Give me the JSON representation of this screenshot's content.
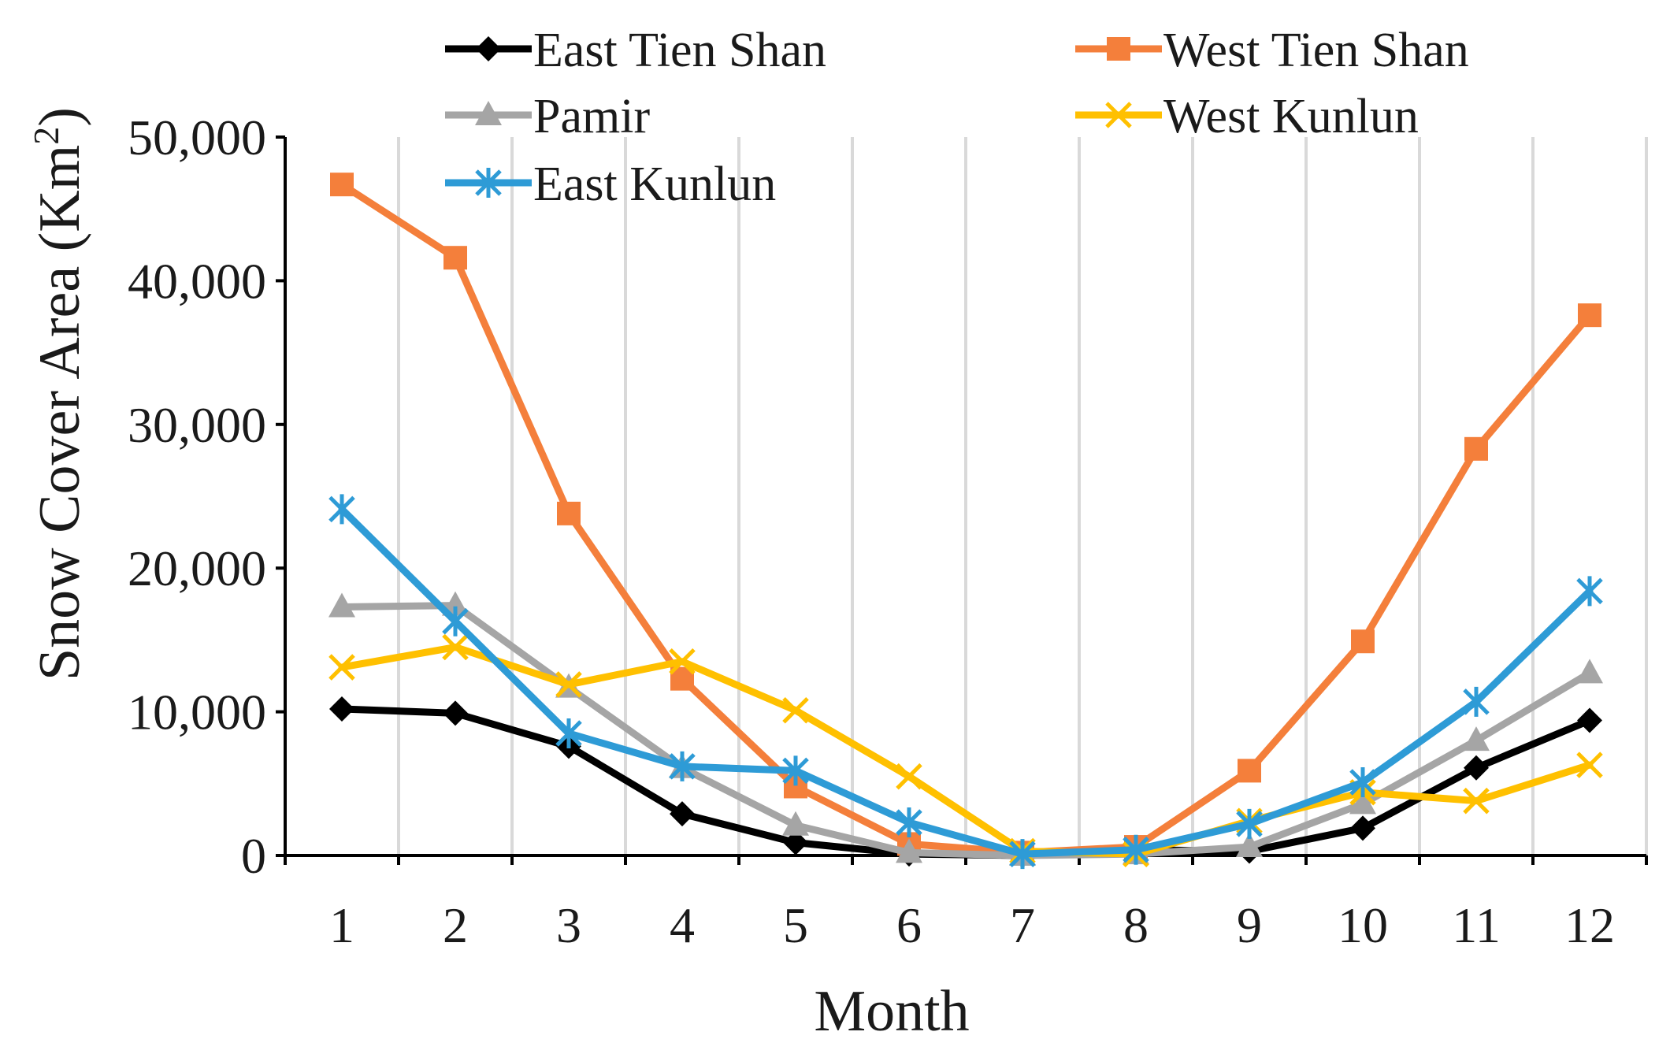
{
  "chart_data": {
    "type": "line",
    "title": "",
    "xlabel": "Month",
    "ylabel": "Snow Cover Area (Km",
    "ylabel_superscript": "2",
    "ylabel_close": ")",
    "categories": [
      "1",
      "2",
      "3",
      "4",
      "5",
      "6",
      "7",
      "8",
      "9",
      "10",
      "11",
      "12"
    ],
    "ylim": [
      0,
      50000
    ],
    "yticks": [
      0,
      10000,
      20000,
      30000,
      40000,
      50000
    ],
    "ytick_labels": [
      "0",
      "10,000",
      "20,000",
      "30,000",
      "40,000",
      "50,000"
    ],
    "grid": "vertical",
    "legend_position": "top",
    "series": [
      {
        "name": "East Tien Shan",
        "color": "#000000",
        "marker": "diamond",
        "values": [
          10200,
          9900,
          7600,
          2900,
          900,
          100,
          0,
          400,
          300,
          1900,
          6100,
          9400
        ]
      },
      {
        "name": "West Tien Shan",
        "color": "#F47F3B",
        "marker": "square",
        "values": [
          46700,
          41600,
          23800,
          12300,
          4800,
          800,
          200,
          600,
          5900,
          14900,
          28300,
          37600
        ]
      },
      {
        "name": "Pamir",
        "color": "#A5A5A5",
        "marker": "triangle",
        "values": [
          17300,
          17400,
          11700,
          6100,
          2100,
          200,
          0,
          100,
          600,
          3600,
          8000,
          12700
        ]
      },
      {
        "name": "West Kunlun",
        "color": "#FFC000",
        "marker": "x",
        "values": [
          13100,
          14500,
          11900,
          13500,
          10100,
          5500,
          300,
          100,
          2400,
          4400,
          3800,
          6300
        ]
      },
      {
        "name": "East Kunlun",
        "color": "#2E9BD6",
        "marker": "asterisk",
        "values": [
          24100,
          16300,
          8500,
          6200,
          5900,
          2300,
          100,
          400,
          2200,
          5100,
          10700,
          18400
        ]
      }
    ]
  }
}
